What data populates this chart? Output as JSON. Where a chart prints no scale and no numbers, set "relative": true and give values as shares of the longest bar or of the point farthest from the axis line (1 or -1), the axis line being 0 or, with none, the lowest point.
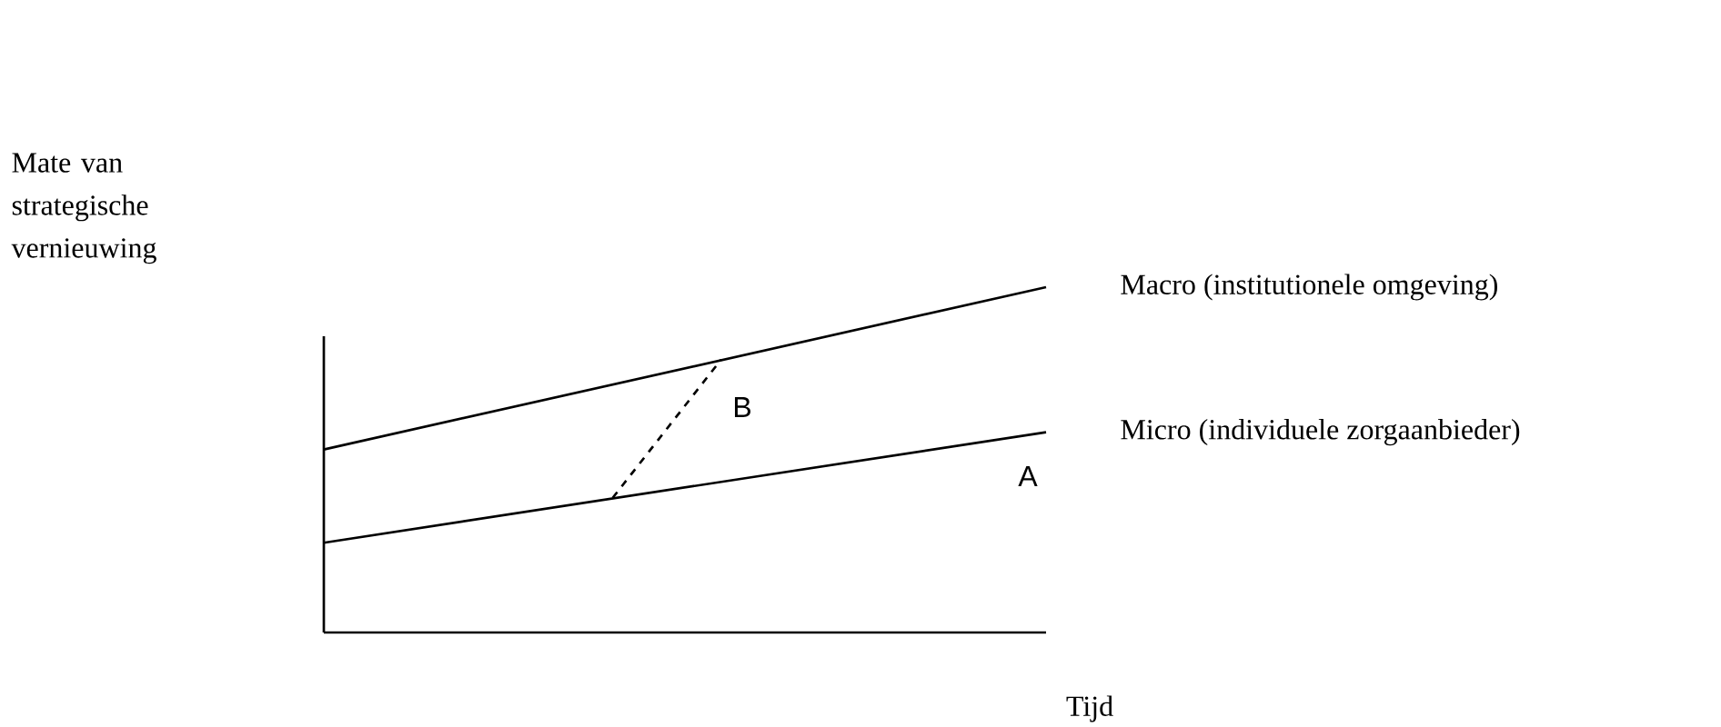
{
  "chart_data": {
    "type": "line",
    "relative": true,
    "legend": false,
    "marker": "none",
    "xlabel": "Tijd",
    "categories": [
      null,
      null,
      null,
      null,
      null,
      null,
      null,
      null,
      null,
      null,
      null,
      null,
      null,
      null,
      null,
      null,
      null,
      null,
      null,
      null,
      null
    ],
    "series": [
      {
        "name": "Macro (institutionele omgeving)",
        "color": "#000000",
        "line_style": "solid",
        "values": [
          0.53,
          null,
          null,
          null,
          null,
          null,
          null,
          null,
          null,
          null,
          null,
          null,
          null,
          null,
          null,
          null,
          null,
          null,
          null,
          null,
          1
        ]
      },
      {
        "name": "Micro (individuele zorgaanbieder)",
        "color": "#000000",
        "line_style": "solid",
        "values": [
          0.26,
          null,
          null,
          null,
          null,
          null,
          null,
          null,
          null,
          null,
          null,
          null,
          null,
          null,
          null,
          null,
          null,
          null,
          null,
          null,
          0.58
        ]
      },
      {
        "color": "#000000",
        "line_style": "dashed",
        "values": [
          null,
          null,
          null,
          null,
          null,
          null,
          null,
          null,
          0.39,
          null,
          null,
          0.79,
          null,
          null,
          null,
          null,
          null,
          null,
          null,
          null,
          null
        ]
      }
    ],
    "annotations": [
      "Mate van strategische vernieuwing",
      "B",
      "A"
    ]
  }
}
